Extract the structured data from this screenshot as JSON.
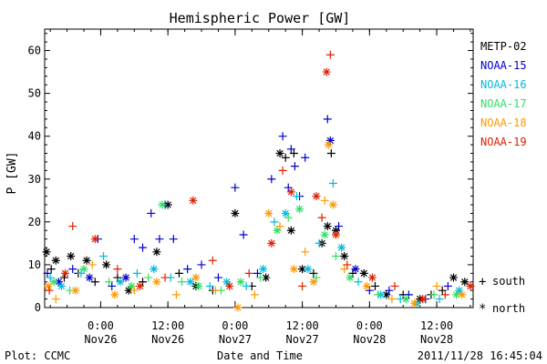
{
  "chart_data": {
    "type": "scatter",
    "title": "Hemispheric Power [GW]",
    "ylabel": "P [GW]",
    "xlabel": "Date and Time",
    "ylim": [
      0,
      65
    ],
    "xlim": [
      "2011-11-25T14:00",
      "2011-11-28T18:30"
    ],
    "yticks": [
      0,
      10,
      20,
      30,
      40,
      50,
      60
    ],
    "xticks": [
      {
        "time": "2011-11-26T00:00",
        "line1": "0:00",
        "line2": "Nov26"
      },
      {
        "time": "2011-11-26T12:00",
        "line1": "12:00",
        "line2": "Nov26"
      },
      {
        "time": "2011-11-27T00:00",
        "line1": "0:00",
        "line2": "Nov27"
      },
      {
        "time": "2011-11-27T12:00",
        "line1": "12:00",
        "line2": "Nov27"
      },
      {
        "time": "2011-11-28T00:00",
        "line1": "0:00",
        "line2": "Nov28"
      },
      {
        "time": "2011-11-28T12:00",
        "line1": "12:00",
        "line2": "Nov28"
      }
    ],
    "legend_position": "right",
    "marker_legend": [
      {
        "symbol": "+",
        "label": "south"
      },
      {
        "symbol": "*",
        "label": "north"
      }
    ],
    "series": [
      {
        "name": "METP-02",
        "color": "#000000",
        "points": [
          [
            "2011-11-25T14:20",
            13,
            "*"
          ],
          [
            "2011-11-25T15:10",
            9,
            "+"
          ],
          [
            "2011-11-25T16:00",
            11,
            "*"
          ],
          [
            "2011-11-25T17:30",
            7,
            "+"
          ],
          [
            "2011-11-25T18:40",
            12,
            "*"
          ],
          [
            "2011-11-25T20:00",
            8,
            "+"
          ],
          [
            "2011-11-25T21:30",
            11,
            "*"
          ],
          [
            "2011-11-25T23:00",
            6,
            "+"
          ],
          [
            "2011-11-26T01:00",
            10,
            "*"
          ],
          [
            "2011-11-26T03:00",
            7,
            "+"
          ],
          [
            "2011-11-26T05:00",
            4,
            "*"
          ],
          [
            "2011-11-26T07:30",
            6,
            "+"
          ],
          [
            "2011-11-26T10:00",
            13,
            "*"
          ],
          [
            "2011-11-26T12:00",
            24,
            "*"
          ],
          [
            "2011-11-26T14:00",
            8,
            "+"
          ],
          [
            "2011-11-26T17:00",
            5,
            "*"
          ],
          [
            "2011-11-26T20:00",
            4,
            "+"
          ],
          [
            "2011-11-27T00:00",
            22,
            "*"
          ],
          [
            "2011-11-27T03:00",
            5,
            "+"
          ],
          [
            "2011-11-27T05:30",
            7,
            "*"
          ],
          [
            "2011-11-27T08:00",
            36,
            "*"
          ],
          [
            "2011-11-27T09:00",
            35,
            "+"
          ],
          [
            "2011-11-27T10:00",
            18,
            "*"
          ],
          [
            "2011-11-27T10:30",
            36,
            "+"
          ],
          [
            "2011-11-27T12:00",
            9,
            "*"
          ],
          [
            "2011-11-27T14:00",
            8,
            "+"
          ],
          [
            "2011-11-27T15:30",
            15,
            "*"
          ],
          [
            "2011-11-27T16:30",
            19,
            "*"
          ],
          [
            "2011-11-27T17:10",
            36,
            "+"
          ],
          [
            "2011-11-27T18:00",
            18,
            "*"
          ],
          [
            "2011-11-27T19:30",
            12,
            "*"
          ],
          [
            "2011-11-27T21:00",
            8,
            "+"
          ],
          [
            "2011-11-27T23:00",
            8,
            "*"
          ],
          [
            "2011-11-28T01:00",
            5,
            "+"
          ],
          [
            "2011-11-28T03:00",
            3,
            "*"
          ],
          [
            "2011-11-28T06:00",
            3,
            "+"
          ],
          [
            "2011-11-28T09:00",
            2,
            "*"
          ],
          [
            "2011-11-28T11:00",
            3,
            "+"
          ],
          [
            "2011-11-28T13:00",
            4,
            "+"
          ],
          [
            "2011-11-28T15:00",
            7,
            "*"
          ],
          [
            "2011-11-28T17:00",
            6,
            "*"
          ]
        ]
      },
      {
        "name": "NOAA-15",
        "color": "#0000cc",
        "points": [
          [
            "2011-11-25T14:30",
            8,
            "+"
          ],
          [
            "2011-11-25T16:30",
            6,
            "*"
          ],
          [
            "2011-11-25T19:00",
            9,
            "+"
          ],
          [
            "2011-11-25T22:00",
            7,
            "*"
          ],
          [
            "2011-11-25T23:30",
            16,
            "+"
          ],
          [
            "2011-11-26T02:00",
            5,
            "+"
          ],
          [
            "2011-11-26T04:30",
            7,
            "*"
          ],
          [
            "2011-11-26T06:00",
            16,
            "+"
          ],
          [
            "2011-11-26T07:30",
            14,
            "+"
          ],
          [
            "2011-11-26T09:00",
            22,
            "+"
          ],
          [
            "2011-11-26T10:30",
            16,
            "+"
          ],
          [
            "2011-11-26T11:30",
            24,
            "+"
          ],
          [
            "2011-11-26T13:00",
            16,
            "+"
          ],
          [
            "2011-11-26T15:30",
            9,
            "+"
          ],
          [
            "2011-11-26T18:00",
            10,
            "+"
          ],
          [
            "2011-11-26T21:00",
            7,
            "+"
          ],
          [
            "2011-11-27T00:00",
            28,
            "+"
          ],
          [
            "2011-11-27T01:30",
            17,
            "+"
          ],
          [
            "2011-11-27T04:00",
            8,
            "+"
          ],
          [
            "2011-11-27T06:30",
            30,
            "+"
          ],
          [
            "2011-11-27T08:30",
            40,
            "+"
          ],
          [
            "2011-11-27T09:30",
            28,
            "+"
          ],
          [
            "2011-11-27T10:00",
            37,
            "+"
          ],
          [
            "2011-11-27T10:40",
            33,
            "+"
          ],
          [
            "2011-11-27T11:30",
            26,
            "+"
          ],
          [
            "2011-11-27T12:30",
            35,
            "+"
          ],
          [
            "2011-11-27T16:30",
            44,
            "+"
          ],
          [
            "2011-11-27T17:00",
            39,
            "*"
          ],
          [
            "2011-11-27T18:30",
            19,
            "+"
          ],
          [
            "2011-11-27T21:30",
            9,
            "*"
          ],
          [
            "2011-11-28T00:00",
            4,
            "+"
          ],
          [
            "2011-11-28T03:30",
            4,
            "+"
          ],
          [
            "2011-11-28T07:00",
            3,
            "+"
          ],
          [
            "2011-11-28T10:00",
            2,
            "+"
          ],
          [
            "2011-11-28T14:00",
            5,
            "+"
          ]
        ]
      },
      {
        "name": "NOAA-16",
        "color": "#00bbdd",
        "points": [
          [
            "2011-11-25T15:00",
            7,
            "+"
          ],
          [
            "2011-11-25T17:00",
            5,
            "*"
          ],
          [
            "2011-11-25T20:30",
            8,
            "+"
          ],
          [
            "2011-11-26T00:30",
            12,
            "+"
          ],
          [
            "2011-11-26T03:30",
            6,
            "*"
          ],
          [
            "2011-11-26T06:30",
            8,
            "+"
          ],
          [
            "2011-11-26T09:30",
            9,
            "*"
          ],
          [
            "2011-11-26T12:30",
            7,
            "+"
          ],
          [
            "2011-11-26T16:00",
            6,
            "*"
          ],
          [
            "2011-11-26T19:30",
            5,
            "+"
          ],
          [
            "2011-11-26T22:30",
            6,
            "*"
          ],
          [
            "2011-11-27T02:00",
            5,
            "+"
          ],
          [
            "2011-11-27T05:00",
            9,
            "*"
          ],
          [
            "2011-11-27T07:00",
            20,
            "+"
          ],
          [
            "2011-11-27T09:00",
            22,
            "*"
          ],
          [
            "2011-11-27T11:00",
            26,
            "+"
          ],
          [
            "2011-11-27T13:00",
            9,
            "*"
          ],
          [
            "2011-11-27T15:00",
            15,
            "+"
          ],
          [
            "2011-11-27T17:30",
            29,
            "+"
          ],
          [
            "2011-11-27T19:00",
            14,
            "*"
          ],
          [
            "2011-11-27T22:00",
            6,
            "+"
          ],
          [
            "2011-11-28T02:00",
            3,
            "*"
          ],
          [
            "2011-11-28T05:30",
            2,
            "+"
          ],
          [
            "2011-11-28T08:30",
            1,
            "*"
          ],
          [
            "2011-11-28T12:30",
            2,
            "+"
          ],
          [
            "2011-11-28T16:00",
            4,
            "*"
          ]
        ]
      },
      {
        "name": "NOAA-17",
        "color": "#33dd66",
        "points": [
          [
            "2011-11-25T15:40",
            6,
            "*"
          ],
          [
            "2011-11-25T18:30",
            4,
            "+"
          ],
          [
            "2011-11-25T21:00",
            9,
            "*"
          ],
          [
            "2011-11-26T01:30",
            6,
            "+"
          ],
          [
            "2011-11-26T05:30",
            5,
            "*"
          ],
          [
            "2011-11-26T08:30",
            7,
            "+"
          ],
          [
            "2011-11-26T11:00",
            24,
            "*"
          ],
          [
            "2011-11-26T14:30",
            6,
            "+"
          ],
          [
            "2011-11-26T17:30",
            5,
            "*"
          ],
          [
            "2011-11-26T21:30",
            4,
            "+"
          ],
          [
            "2011-11-27T01:00",
            6,
            "*"
          ],
          [
            "2011-11-27T04:30",
            7,
            "+"
          ],
          [
            "2011-11-27T07:30",
            18,
            "*"
          ],
          [
            "2011-11-27T09:30",
            21,
            "+"
          ],
          [
            "2011-11-27T11:30",
            23,
            "*"
          ],
          [
            "2011-11-27T14:30",
            7,
            "+"
          ],
          [
            "2011-11-27T16:00",
            17,
            "*"
          ],
          [
            "2011-11-27T18:00",
            12,
            "+"
          ],
          [
            "2011-11-27T20:30",
            7,
            "*"
          ],
          [
            "2011-11-28T01:30",
            3,
            "+"
          ],
          [
            "2011-11-28T06:30",
            2,
            "*"
          ],
          [
            "2011-11-28T11:30",
            3,
            "+"
          ],
          [
            "2011-11-28T15:30",
            3,
            "*"
          ]
        ]
      },
      {
        "name": "NOAA-18",
        "color": "#ff9900",
        "points": [
          [
            "2011-11-25T14:40",
            5,
            "*"
          ],
          [
            "2011-11-25T16:00",
            2,
            "+"
          ],
          [
            "2011-11-25T19:30",
            4,
            "*"
          ],
          [
            "2011-11-25T22:30",
            10,
            "+"
          ],
          [
            "2011-11-26T02:30",
            3,
            "*"
          ],
          [
            "2011-11-26T06:00",
            4,
            "+"
          ],
          [
            "2011-11-26T10:00",
            6,
            "*"
          ],
          [
            "2011-11-26T13:30",
            3,
            "+"
          ],
          [
            "2011-11-26T17:00",
            7,
            "*"
          ],
          [
            "2011-11-26T20:30",
            4,
            "+"
          ],
          [
            "2011-11-27T00:30",
            0,
            "*"
          ],
          [
            "2011-11-27T03:30",
            3,
            "+"
          ],
          [
            "2011-11-27T06:00",
            22,
            "*"
          ],
          [
            "2011-11-27T08:00",
            19,
            "+"
          ],
          [
            "2011-11-27T10:30",
            9,
            "*"
          ],
          [
            "2011-11-27T12:30",
            13,
            "+"
          ],
          [
            "2011-11-27T14:00",
            6,
            "*"
          ],
          [
            "2011-11-27T16:00",
            25,
            "+"
          ],
          [
            "2011-11-27T16:40",
            38,
            "*"
          ],
          [
            "2011-11-27T17:30",
            24,
            "*"
          ],
          [
            "2011-11-27T19:30",
            9,
            "+"
          ],
          [
            "2011-11-27T23:30",
            5,
            "*"
          ],
          [
            "2011-11-28T04:00",
            2,
            "+"
          ],
          [
            "2011-11-28T08:00",
            1,
            "*"
          ],
          [
            "2011-11-28T12:00",
            5,
            "+"
          ],
          [
            "2011-11-28T16:30",
            3,
            "*"
          ]
        ]
      },
      {
        "name": "NOAA-19",
        "color": "#dd2200",
        "points": [
          [
            "2011-11-25T14:50",
            4,
            "+"
          ],
          [
            "2011-11-25T17:40",
            8,
            "*"
          ],
          [
            "2011-11-25T19:00",
            19,
            "+"
          ],
          [
            "2011-11-25T23:00",
            16,
            "*"
          ],
          [
            "2011-11-26T03:00",
            9,
            "+"
          ],
          [
            "2011-11-26T07:00",
            5,
            "*"
          ],
          [
            "2011-11-26T11:30",
            7,
            "+"
          ],
          [
            "2011-11-26T16:30",
            25,
            "*"
          ],
          [
            "2011-11-26T20:00",
            11,
            "+"
          ],
          [
            "2011-11-26T23:00",
            5,
            "*"
          ],
          [
            "2011-11-27T02:30",
            8,
            "+"
          ],
          [
            "2011-11-27T06:30",
            15,
            "*"
          ],
          [
            "2011-11-27T08:30",
            32,
            "+"
          ],
          [
            "2011-11-27T10:00",
            27,
            "*"
          ],
          [
            "2011-11-27T12:00",
            5,
            "+"
          ],
          [
            "2011-11-27T14:30",
            26,
            "*"
          ],
          [
            "2011-11-27T15:30",
            21,
            "+"
          ],
          [
            "2011-11-27T16:20",
            55,
            "*"
          ],
          [
            "2011-11-27T17:00",
            59,
            "+"
          ],
          [
            "2011-11-27T18:00",
            17,
            "*"
          ],
          [
            "2011-11-27T20:00",
            10,
            "+"
          ],
          [
            "2011-11-28T00:30",
            7,
            "*"
          ],
          [
            "2011-11-28T04:30",
            5,
            "+"
          ],
          [
            "2011-11-28T09:30",
            2,
            "*"
          ],
          [
            "2011-11-28T13:30",
            3,
            "+"
          ],
          [
            "2011-11-28T18:00",
            5,
            "*"
          ]
        ]
      }
    ]
  },
  "footer": {
    "left": "Plot: CCMC",
    "center": "Date and Time",
    "right": "2011/11/28 16:45:04"
  }
}
